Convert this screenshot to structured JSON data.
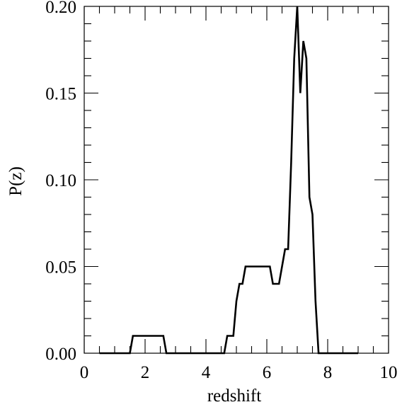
{
  "chart_data": {
    "type": "line",
    "title": "",
    "xlabel": "redshift",
    "ylabel": "P(z)",
    "xlim": [
      0,
      10
    ],
    "ylim": [
      0,
      0.2
    ],
    "x_ticks": [
      0,
      2,
      4,
      6,
      8,
      10
    ],
    "x_tick_labels": [
      "0",
      "2",
      "4",
      "6",
      "8",
      "10"
    ],
    "y_ticks": [
      0,
      0.05,
      0.1,
      0.15,
      0.2
    ],
    "y_tick_labels": [
      "0.00",
      "0.05",
      "0.10",
      "0.15",
      "0.20"
    ],
    "grid": false,
    "legend": "none",
    "line_color": "#000000",
    "series": [
      {
        "x": [
          0.5,
          1.5,
          1.6,
          2.6,
          2.7,
          4.6,
          4.7,
          4.9,
          5.0,
          5.1,
          5.2,
          5.3,
          6.1,
          6.2,
          6.4,
          6.5,
          6.6,
          6.7,
          6.8,
          6.9,
          7.0,
          7.1,
          7.2,
          7.3,
          7.4,
          7.5,
          7.6,
          7.7,
          9.0
        ],
        "y": [
          0.0,
          0.0,
          0.01,
          0.01,
          0.0,
          0.0,
          0.01,
          0.01,
          0.03,
          0.04,
          0.04,
          0.05,
          0.05,
          0.04,
          0.04,
          0.05,
          0.06,
          0.06,
          0.11,
          0.17,
          0.2,
          0.15,
          0.18,
          0.17,
          0.09,
          0.08,
          0.03,
          0.0,
          0.0
        ]
      }
    ]
  }
}
